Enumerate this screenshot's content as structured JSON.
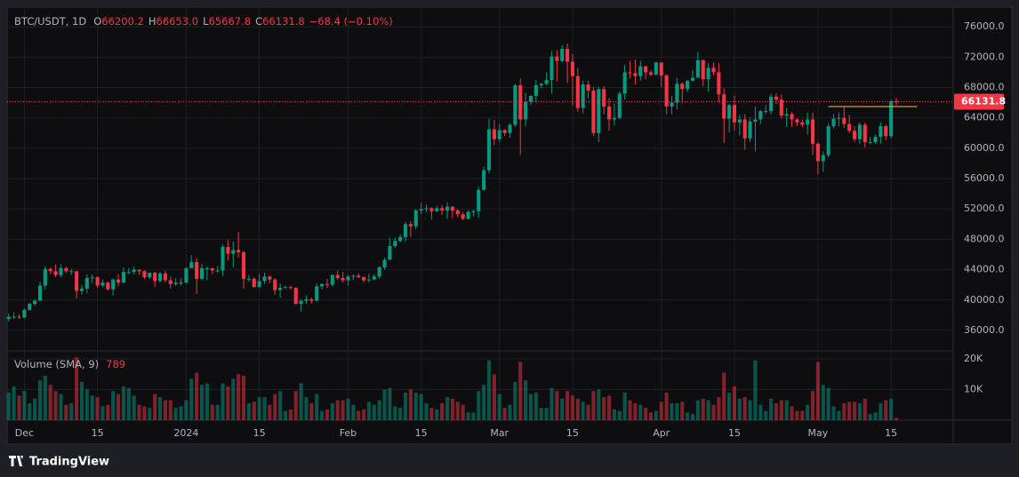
{
  "chart_data": {
    "type": "candlestick",
    "symbol": "BTC/USDT, 1D",
    "legend": [
      {
        "key": "O",
        "value": "66200.2"
      },
      {
        "key": "H",
        "value": "66653.0"
      },
      {
        "key": "L",
        "value": "65667.8"
      },
      {
        "key": "C",
        "value": "66131.8"
      }
    ],
    "change": "−68.4 (−0.10%)",
    "volume_label": "Volume (SMA, 9)",
    "source": "TradingView",
    "up_color": "#089981",
    "down_color": "#f23645",
    "candles": [
      [
        37500,
        38200,
        37200,
        37800,
        9000
      ],
      [
        37800,
        38400,
        37500,
        37800,
        11000
      ],
      [
        37800,
        38100,
        37500,
        37700,
        8000
      ],
      [
        37700,
        38900,
        37600,
        38700,
        9500
      ],
      [
        38700,
        39600,
        38600,
        39500,
        5500
      ],
      [
        39500,
        40100,
        39200,
        39900,
        7000
      ],
      [
        39900,
        42400,
        39900,
        41900,
        13000
      ],
      [
        41900,
        44400,
        41400,
        44100,
        14500
      ],
      [
        44100,
        44300,
        43400,
        43800,
        11500
      ],
      [
        43800,
        44700,
        43000,
        43300,
        9500
      ],
      [
        43300,
        44700,
        43000,
        44200,
        8500
      ],
      [
        44200,
        44400,
        43600,
        43800,
        5000
      ],
      [
        43800,
        44100,
        43300,
        43800,
        5500
      ],
      [
        43800,
        43800,
        40200,
        41200,
        20500
      ],
      [
        41200,
        42000,
        40700,
        41500,
        12500
      ],
      [
        41500,
        43400,
        40900,
        42900,
        10000
      ],
      [
        42900,
        43400,
        42200,
        43000,
        8000
      ],
      [
        43000,
        43100,
        41600,
        41900,
        7500
      ],
      [
        41900,
        42700,
        41700,
        42300,
        4500
      ],
      [
        42300,
        42400,
        41300,
        41400,
        5000
      ],
      [
        41400,
        42800,
        40600,
        42700,
        9500
      ],
      [
        42700,
        43400,
        41800,
        42300,
        8500
      ],
      [
        42300,
        44300,
        42200,
        43700,
        11000
      ],
      [
        43700,
        44200,
        43400,
        43700,
        10500
      ],
      [
        43700,
        44400,
        43400,
        44000,
        8000
      ],
      [
        44000,
        44000,
        43300,
        43800,
        5000
      ],
      [
        43800,
        43900,
        42800,
        43000,
        4500
      ],
      [
        43000,
        43600,
        42800,
        43600,
        4000
      ],
      [
        43600,
        43700,
        41700,
        42500,
        8500
      ],
      [
        42500,
        43700,
        42300,
        43500,
        7500
      ],
      [
        43500,
        43900,
        42300,
        42600,
        6500
      ],
      [
        42600,
        43100,
        41500,
        42100,
        6500
      ],
      [
        42100,
        42900,
        41900,
        42300,
        4000
      ],
      [
        42300,
        42900,
        41900,
        42300,
        4500
      ],
      [
        42300,
        44300,
        42200,
        44200,
        6500
      ],
      [
        44200,
        45900,
        44200,
        45000,
        13500
      ],
      [
        45000,
        45500,
        40800,
        42800,
        15500
      ],
      [
        42800,
        44800,
        42600,
        44200,
        11500
      ],
      [
        44200,
        44400,
        42600,
        44200,
        12000
      ],
      [
        44200,
        44200,
        43400,
        43900,
        5000
      ],
      [
        43900,
        44500,
        43600,
        43900,
        5000
      ],
      [
        43900,
        47300,
        43200,
        47000,
        12000
      ],
      [
        47000,
        47900,
        45200,
        46100,
        11000
      ],
      [
        46100,
        47700,
        44300,
        46600,
        13500
      ],
      [
        46600,
        49000,
        45600,
        46300,
        15000
      ],
      [
        46300,
        46500,
        41500,
        42800,
        14500
      ],
      [
        42800,
        43300,
        42400,
        42800,
        5500
      ],
      [
        42800,
        43000,
        41700,
        41700,
        6000
      ],
      [
        41700,
        43400,
        41700,
        42500,
        7500
      ],
      [
        42500,
        43600,
        42100,
        43100,
        7500
      ],
      [
        43100,
        43200,
        42200,
        42700,
        5000
      ],
      [
        42700,
        42900,
        40700,
        41300,
        8500
      ],
      [
        41300,
        42200,
        40300,
        41600,
        9500
      ],
      [
        41600,
        41900,
        41500,
        41700,
        3000
      ],
      [
        41700,
        41900,
        41400,
        41600,
        3500
      ],
      [
        41600,
        41700,
        39400,
        39500,
        9500
      ],
      [
        39500,
        40100,
        38500,
        39900,
        12000
      ],
      [
        39900,
        40600,
        39500,
        40100,
        7500
      ],
      [
        40100,
        40300,
        39500,
        39900,
        5500
      ],
      [
        39900,
        42200,
        39800,
        41800,
        8500
      ],
      [
        41800,
        42200,
        41400,
        42100,
        3000
      ],
      [
        42100,
        42800,
        41600,
        42000,
        3500
      ],
      [
        42000,
        43400,
        41800,
        43300,
        5500
      ],
      [
        43300,
        43900,
        42700,
        42900,
        6500
      ],
      [
        42900,
        43700,
        42300,
        42600,
        6500
      ],
      [
        42600,
        43300,
        41900,
        43100,
        7000
      ],
      [
        43100,
        43400,
        42600,
        43200,
        5000
      ],
      [
        43200,
        43500,
        42900,
        43000,
        3000
      ],
      [
        43000,
        43100,
        42300,
        42600,
        3500
      ],
      [
        42600,
        43500,
        42300,
        42700,
        6000
      ],
      [
        42700,
        43400,
        42600,
        43100,
        5000
      ],
      [
        43100,
        44500,
        42800,
        44300,
        6500
      ],
      [
        44300,
        45600,
        44000,
        45300,
        10000
      ],
      [
        45300,
        48200,
        45300,
        47100,
        10500
      ],
      [
        47100,
        48200,
        46900,
        47800,
        4500
      ],
      [
        47800,
        48600,
        47600,
        48300,
        4000
      ],
      [
        48300,
        50300,
        47700,
        50000,
        9000
      ],
      [
        50000,
        50400,
        48300,
        49700,
        10000
      ],
      [
        49700,
        52000,
        49300,
        51800,
        9000
      ],
      [
        51800,
        52800,
        51300,
        52000,
        8500
      ],
      [
        52000,
        52600,
        51600,
        52100,
        5500
      ],
      [
        52100,
        52200,
        50600,
        51700,
        4000
      ],
      [
        51700,
        52400,
        51600,
        52100,
        3500
      ],
      [
        52100,
        52500,
        51200,
        51800,
        5500
      ],
      [
        51800,
        52900,
        50700,
        52300,
        7500
      ],
      [
        52300,
        52400,
        50800,
        51800,
        7000
      ],
      [
        51800,
        52000,
        50900,
        51300,
        6000
      ],
      [
        51300,
        51600,
        50500,
        50700,
        5000
      ],
      [
        50700,
        51800,
        50600,
        51600,
        2500
      ],
      [
        51600,
        51900,
        51000,
        51700,
        2500
      ],
      [
        51700,
        54900,
        50800,
        54500,
        9500
      ],
      [
        54500,
        57600,
        54400,
        57100,
        11500
      ],
      [
        57100,
        63900,
        56700,
        62500,
        19500
      ],
      [
        62500,
        63700,
        60400,
        61200,
        15000
      ],
      [
        61200,
        63200,
        60800,
        62400,
        8500
      ],
      [
        62400,
        62500,
        61600,
        62000,
        4000
      ],
      [
        62000,
        63300,
        61400,
        63100,
        5000
      ],
      [
        63100,
        68500,
        62800,
        68300,
        12500
      ],
      [
        68300,
        69200,
        59100,
        63800,
        19000
      ],
      [
        63800,
        67300,
        62900,
        66100,
        13000
      ],
      [
        66100,
        67000,
        65700,
        66900,
        8500
      ],
      [
        66900,
        69000,
        66000,
        68300,
        9000
      ],
      [
        68300,
        68600,
        67900,
        68500,
        4000
      ],
      [
        68500,
        70000,
        68300,
        69000,
        4000
      ],
      [
        69000,
        72800,
        67200,
        72100,
        10500
      ],
      [
        72100,
        72900,
        68800,
        71500,
        9500
      ],
      [
        71500,
        73600,
        71300,
        73100,
        7000
      ],
      [
        73100,
        73800,
        68600,
        71400,
        9500
      ],
      [
        71400,
        72400,
        65600,
        69500,
        8000
      ],
      [
        69500,
        70600,
        64800,
        65300,
        7000
      ],
      [
        65300,
        68900,
        64600,
        68400,
        6000
      ],
      [
        68400,
        68900,
        66600,
        67600,
        5000
      ],
      [
        67600,
        68100,
        61600,
        62000,
        9500
      ],
      [
        62000,
        68100,
        60800,
        67800,
        10000
      ],
      [
        67800,
        68200,
        64500,
        65500,
        7500
      ],
      [
        65500,
        66600,
        62300,
        63800,
        8000
      ],
      [
        63800,
        65900,
        63000,
        64000,
        3500
      ],
      [
        64000,
        67500,
        63800,
        67200,
        3000
      ],
      [
        67200,
        71000,
        66400,
        70000,
        9000
      ],
      [
        70000,
        71500,
        69200,
        69900,
        6500
      ],
      [
        69900,
        71700,
        68400,
        69500,
        5500
      ],
      [
        69500,
        71500,
        68900,
        70800,
        5000
      ],
      [
        70800,
        70900,
        69100,
        70000,
        4000
      ],
      [
        70000,
        70300,
        69500,
        69700,
        2500
      ],
      [
        69700,
        71400,
        69600,
        71300,
        3000
      ],
      [
        71300,
        71300,
        68100,
        69600,
        6000
      ],
      [
        69600,
        69700,
        64500,
        65500,
        9000
      ],
      [
        65500,
        66900,
        64500,
        66000,
        5500
      ],
      [
        66000,
        69300,
        65100,
        68500,
        5500
      ],
      [
        68500,
        68700,
        66000,
        67800,
        6000
      ],
      [
        67800,
        69000,
        67400,
        68900,
        2500
      ],
      [
        68900,
        70300,
        68800,
        69300,
        2000
      ],
      [
        69300,
        72700,
        69300,
        71600,
        6500
      ],
      [
        71600,
        71700,
        68200,
        69100,
        7000
      ],
      [
        69100,
        71200,
        67500,
        70600,
        6500
      ],
      [
        70600,
        71300,
        69600,
        70000,
        5000
      ],
      [
        70000,
        71200,
        66100,
        67100,
        7500
      ],
      [
        67100,
        67900,
        60700,
        63900,
        15500
      ],
      [
        63900,
        65800,
        62100,
        65700,
        9000
      ],
      [
        65700,
        66900,
        62300,
        63400,
        11000
      ],
      [
        63400,
        64400,
        61700,
        63800,
        7000
      ],
      [
        63800,
        64500,
        59800,
        61300,
        7500
      ],
      [
        61300,
        64100,
        60800,
        63500,
        6500
      ],
      [
        63500,
        65500,
        59600,
        63800,
        19500
      ],
      [
        63800,
        65000,
        63200,
        64900,
        5000
      ],
      [
        64900,
        65700,
        64500,
        64900,
        3000
      ],
      [
        64900,
        67200,
        64500,
        66800,
        7000
      ],
      [
        66800,
        67200,
        65800,
        66400,
        5500
      ],
      [
        66400,
        67100,
        63900,
        64300,
        6500
      ],
      [
        64300,
        65300,
        62800,
        64500,
        6500
      ],
      [
        64500,
        64800,
        62800,
        63800,
        4500
      ],
      [
        63800,
        64000,
        62900,
        63400,
        3000
      ],
      [
        63400,
        63800,
        62800,
        63100,
        3000
      ],
      [
        63100,
        64700,
        61800,
        63800,
        5000
      ],
      [
        63800,
        64700,
        59100,
        60600,
        9500
      ],
      [
        60600,
        60800,
        56600,
        58300,
        19000
      ],
      [
        58300,
        59600,
        56900,
        59100,
        11500
      ],
      [
        59100,
        63300,
        58800,
        62900,
        10500
      ],
      [
        62900,
        64500,
        62600,
        63900,
        4500
      ],
      [
        63900,
        64700,
        62900,
        64000,
        3000
      ],
      [
        64000,
        65500,
        62700,
        63200,
        5500
      ],
      [
        63200,
        64400,
        62000,
        62300,
        6000
      ],
      [
        62300,
        62900,
        60800,
        61200,
        6000
      ],
      [
        61200,
        63400,
        60600,
        63100,
        5500
      ],
      [
        63100,
        63400,
        60100,
        60800,
        7000
      ],
      [
        60800,
        61500,
        60600,
        60800,
        2000
      ],
      [
        60800,
        61800,
        60600,
        61500,
        2500
      ],
      [
        61500,
        63400,
        60600,
        62900,
        5500
      ],
      [
        62900,
        63100,
        61100,
        61600,
        6500
      ],
      [
        61600,
        66400,
        61300,
        66200.2,
        7000
      ],
      [
        66200.2,
        66653,
        65667.8,
        66131.8,
        789
      ]
    ],
    "xlim": [
      -0.3,
      180.9
    ],
    "xticks": [
      {
        "value": 3,
        "label": "Dec"
      },
      {
        "value": 17,
        "label": "15"
      },
      {
        "value": 34,
        "label": "2024"
      },
      {
        "value": 48,
        "label": "15"
      },
      {
        "value": 65,
        "label": "Feb"
      },
      {
        "value": 79,
        "label": "15"
      },
      {
        "value": 94,
        "label": "Mar"
      },
      {
        "value": 108,
        "label": "15"
      },
      {
        "value": 125,
        "label": "Apr"
      },
      {
        "value": 139,
        "label": "15"
      },
      {
        "value": 155,
        "label": "May"
      },
      {
        "value": 169,
        "label": "15"
      }
    ],
    "ylim": [
      33300,
      78600
    ],
    "yticks": [
      {
        "value": 36000,
        "label": "36000.0"
      },
      {
        "value": 40000,
        "label": "40000.0"
      },
      {
        "value": 44000,
        "label": "44000.0"
      },
      {
        "value": 48000,
        "label": "48000.0"
      },
      {
        "value": 52000,
        "label": "52000.0"
      },
      {
        "value": 56000,
        "label": "56000.0"
      },
      {
        "value": 60000,
        "label": "60000.0"
      },
      {
        "value": 64000,
        "label": "64000.0"
      },
      {
        "value": 68000,
        "label": "68000.0"
      },
      {
        "value": 72000,
        "label": "72000.0"
      },
      {
        "value": 76000,
        "label": "76000.0"
      }
    ],
    "vlim": [
      0,
      22600
    ],
    "vticks": [
      {
        "value": 10000,
        "label": "10K"
      },
      {
        "value": 20000,
        "label": "20K"
      }
    ],
    "trend_line": {
      "x": [
        157,
        174
      ],
      "y": [
        65500,
        65500
      ],
      "color": "#f5a623"
    },
    "grid": true
  }
}
